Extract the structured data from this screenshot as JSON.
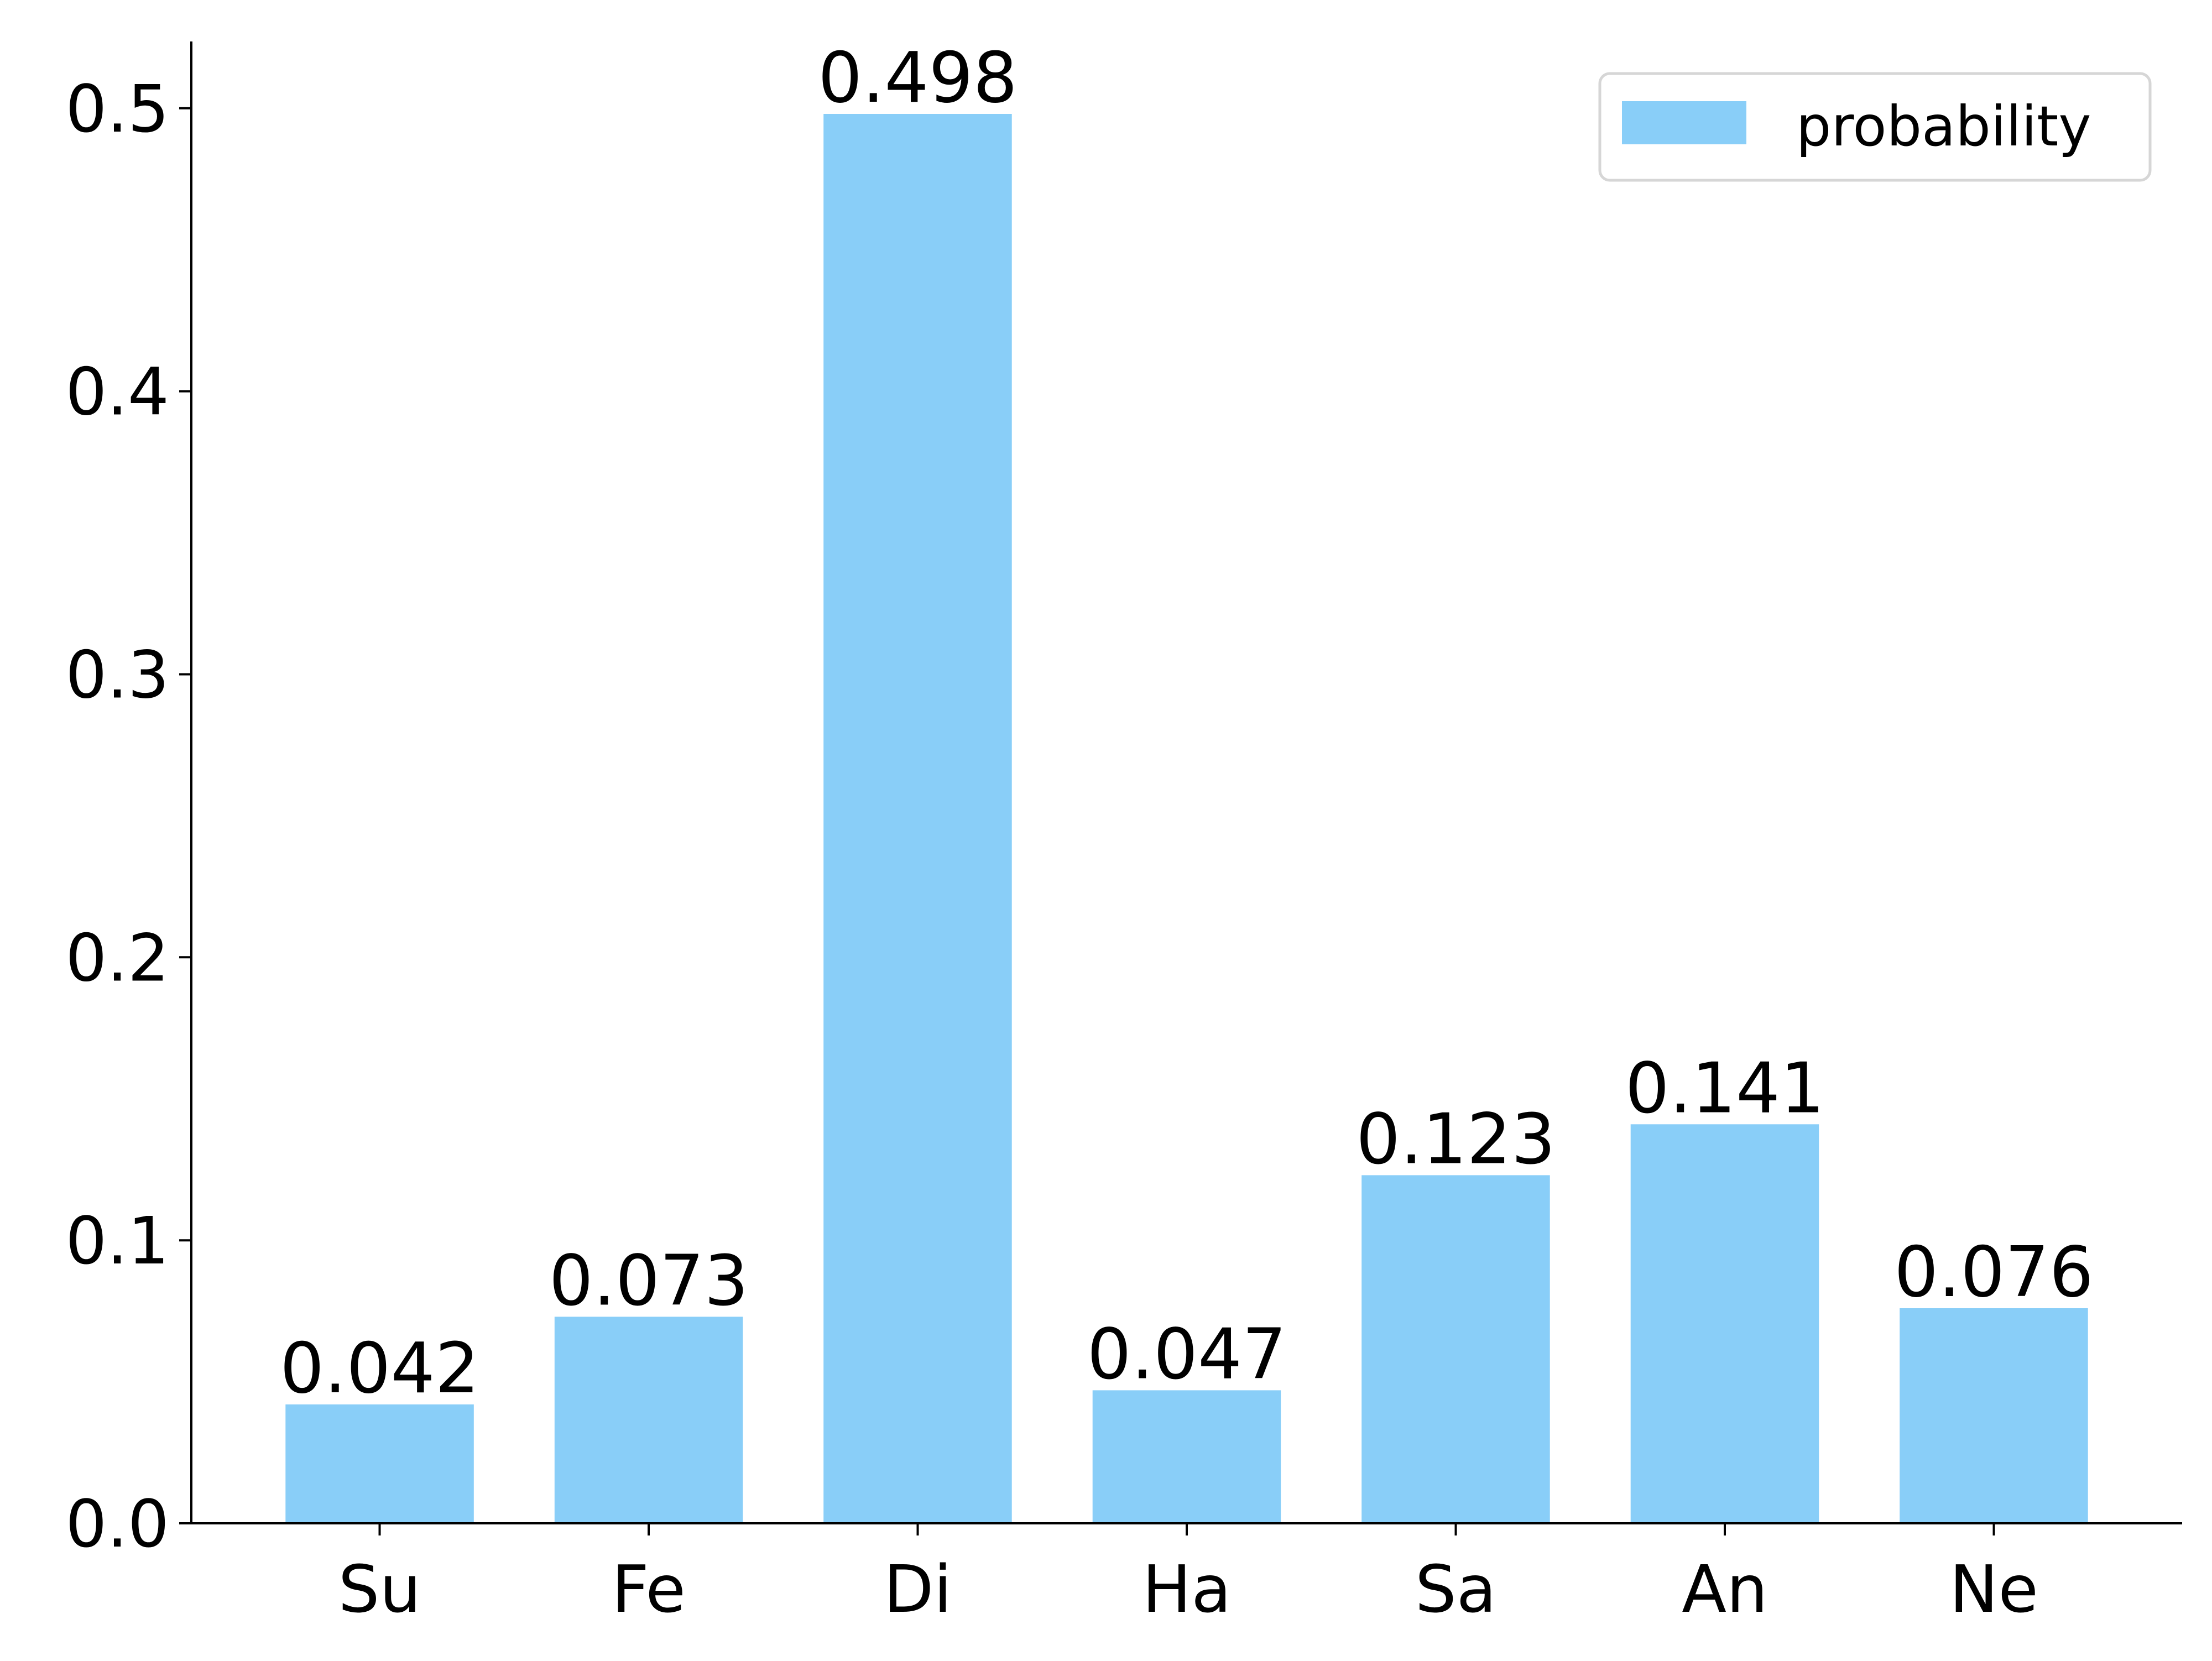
{
  "chart_data": {
    "type": "bar",
    "categories": [
      "Su",
      "Fe",
      "Di",
      "Ha",
      "Sa",
      "An",
      "Ne"
    ],
    "series": [
      {
        "name": "probability",
        "values": [
          0.042,
          0.073,
          0.498,
          0.047,
          0.123,
          0.141,
          0.076
        ],
        "color": "#89CEF8"
      }
    ],
    "data_labels": [
      "0.042",
      "0.073",
      "0.498",
      "0.047",
      "0.123",
      "0.141",
      "0.076"
    ],
    "y_ticks": [
      0.0,
      0.1,
      0.2,
      0.3,
      0.4,
      0.5
    ],
    "y_tick_labels": [
      "0.0",
      "0.1",
      "0.2",
      "0.3",
      "0.4",
      "0.5"
    ],
    "ylim": [
      0,
      0.5236
    ],
    "title": "",
    "xlabel": "",
    "ylabel": "",
    "grid": false,
    "legend": {
      "position": "top-right",
      "entries": [
        "probability"
      ]
    },
    "spines": {
      "top": false,
      "right": false
    }
  }
}
